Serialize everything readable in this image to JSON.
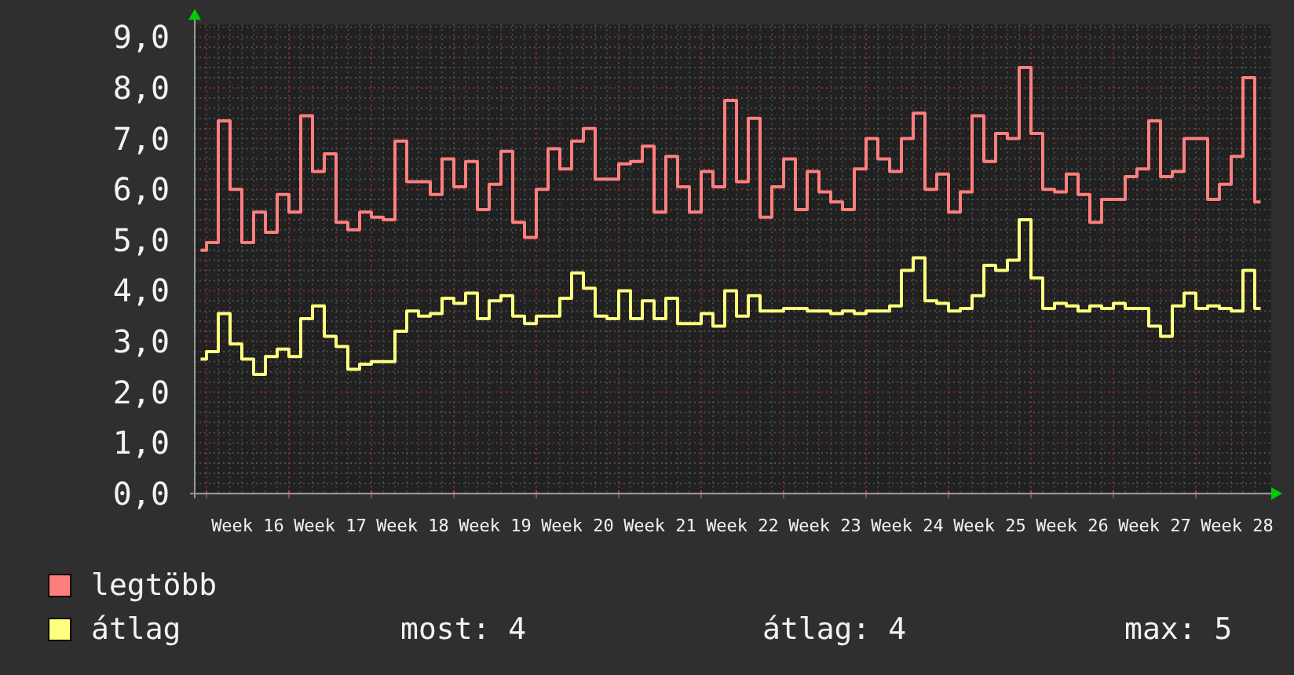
{
  "chart_data": {
    "type": "step",
    "categories": [
      null,
      null,
      null,
      null,
      "Week 16",
      null,
      null,
      null,
      null,
      null,
      null,
      "Week 17",
      null,
      null,
      null,
      null,
      null,
      null,
      "Week 18",
      null,
      null,
      null,
      null,
      null,
      null,
      "Week 19",
      null,
      null,
      null,
      null,
      null,
      null,
      "Week 20",
      null,
      null,
      null,
      null,
      null,
      null,
      "Week 21",
      null,
      null,
      null,
      null,
      null,
      null,
      "Week 22",
      null,
      null,
      null,
      null,
      null,
      null,
      "Week 23",
      null,
      null,
      null,
      null,
      null,
      null,
      "Week 24",
      null,
      null,
      null,
      null,
      null,
      null,
      "Week 25",
      null,
      null,
      null,
      null,
      null,
      null,
      "Week 26",
      null,
      null,
      null,
      null,
      null,
      null,
      "Week 27",
      null,
      null,
      null,
      null,
      null,
      null,
      "Week 28",
      null,
      null
    ],
    "ylim": [
      0,
      9.25
    ],
    "yticks": [
      {
        "value": 0,
        "label": "0,0"
      },
      {
        "value": 0.2,
        "label": null
      },
      {
        "value": 0.4,
        "label": null
      },
      {
        "value": 0.6,
        "label": null
      },
      {
        "value": 0.8,
        "label": null
      },
      {
        "value": 1,
        "label": "1,0"
      },
      {
        "value": 1.2,
        "label": null
      },
      {
        "value": 1.4,
        "label": null
      },
      {
        "value": 1.6,
        "label": null
      },
      {
        "value": 1.8,
        "label": null
      },
      {
        "value": 2,
        "label": "2,0"
      },
      {
        "value": 2.2,
        "label": null
      },
      {
        "value": 2.4,
        "label": null
      },
      {
        "value": 2.6,
        "label": null
      },
      {
        "value": 2.8,
        "label": null
      },
      {
        "value": 3,
        "label": "3,0"
      },
      {
        "value": 3.2,
        "label": null
      },
      {
        "value": 3.4,
        "label": null
      },
      {
        "value": 3.6,
        "label": null
      },
      {
        "value": 3.8,
        "label": null
      },
      {
        "value": 4,
        "label": "4,0"
      },
      {
        "value": 4.2,
        "label": null
      },
      {
        "value": 4.4,
        "label": null
      },
      {
        "value": 4.6,
        "label": null
      },
      {
        "value": 4.8,
        "label": null
      },
      {
        "value": 5,
        "label": "5,0"
      },
      {
        "value": 5.2,
        "label": null
      },
      {
        "value": 5.4,
        "label": null
      },
      {
        "value": 5.6,
        "label": null
      },
      {
        "value": 5.8,
        "label": null
      },
      {
        "value": 6,
        "label": "6,0"
      },
      {
        "value": 6.2,
        "label": null
      },
      {
        "value": 6.4,
        "label": null
      },
      {
        "value": 6.6,
        "label": null
      },
      {
        "value": 6.8,
        "label": null
      },
      {
        "value": 7,
        "label": "7,0"
      },
      {
        "value": 7.2,
        "label": null
      },
      {
        "value": 7.4,
        "label": null
      },
      {
        "value": 7.6,
        "label": null
      },
      {
        "value": 7.8,
        "label": null
      },
      {
        "value": 8,
        "label": "8,0"
      },
      {
        "value": 8.2,
        "label": null
      },
      {
        "value": 8.4,
        "label": null
      },
      {
        "value": 8.6,
        "label": null
      },
      {
        "value": 8.8,
        "label": null
      },
      {
        "value": 9,
        "label": "9,0"
      },
      {
        "value": 9.2,
        "label": null
      }
    ],
    "grid": true,
    "legend": "bottom left",
    "series": [
      {
        "name": "legtöbb",
        "color": "#ff7f7f",
        "values": [
          4.8,
          4.95,
          7.35,
          6.0,
          4.95,
          5.55,
          5.15,
          5.9,
          5.55,
          7.45,
          6.35,
          6.7,
          5.35,
          5.2,
          5.55,
          5.45,
          5.4,
          6.95,
          6.15,
          6.15,
          5.9,
          6.6,
          6.05,
          6.55,
          5.6,
          6.1,
          6.75,
          5.35,
          5.05,
          6.0,
          6.8,
          6.4,
          6.95,
          7.2,
          6.2,
          6.2,
          6.5,
          6.55,
          6.85,
          5.55,
          6.65,
          6.05,
          5.55,
          6.35,
          6.05,
          7.75,
          6.15,
          7.4,
          5.45,
          6.05,
          6.6,
          5.6,
          6.35,
          5.95,
          5.75,
          5.6,
          6.4,
          7.0,
          6.6,
          6.35,
          7.0,
          7.5,
          6.0,
          6.3,
          5.55,
          5.95,
          7.45,
          6.55,
          7.1,
          7.0,
          8.4,
          7.1,
          6.0,
          5.95,
          6.3,
          5.9,
          5.35,
          5.8,
          5.8,
          6.25,
          6.4,
          7.35,
          6.25,
          6.35,
          7.0,
          7.0,
          5.8,
          6.1,
          6.65,
          8.2,
          5.75
        ]
      },
      {
        "name": "átlag",
        "color": "#ffff7f",
        "values": [
          2.65,
          2.8,
          3.55,
          2.95,
          2.65,
          2.35,
          2.7,
          2.85,
          2.7,
          3.45,
          3.7,
          3.1,
          2.9,
          2.45,
          2.55,
          2.6,
          2.6,
          3.2,
          3.6,
          3.5,
          3.55,
          3.85,
          3.75,
          3.95,
          3.45,
          3.8,
          3.9,
          3.5,
          3.35,
          3.5,
          3.5,
          3.85,
          4.35,
          4.05,
          3.5,
          3.45,
          4.0,
          3.45,
          3.8,
          3.45,
          3.85,
          3.35,
          3.35,
          3.55,
          3.3,
          4.0,
          3.5,
          3.9,
          3.6,
          3.6,
          3.65,
          3.65,
          3.6,
          3.6,
          3.55,
          3.6,
          3.55,
          3.6,
          3.6,
          3.7,
          4.4,
          4.65,
          3.8,
          3.75,
          3.6,
          3.65,
          3.9,
          4.5,
          4.4,
          4.6,
          5.4,
          4.25,
          3.65,
          3.75,
          3.7,
          3.6,
          3.7,
          3.65,
          3.75,
          3.65,
          3.65,
          3.3,
          3.1,
          3.7,
          3.95,
          3.65,
          3.7,
          3.65,
          3.6,
          4.4,
          3.65
        ]
      }
    ],
    "annotations": [
      "most: 4",
      "átlag: 4",
      "max: 5"
    ]
  }
}
